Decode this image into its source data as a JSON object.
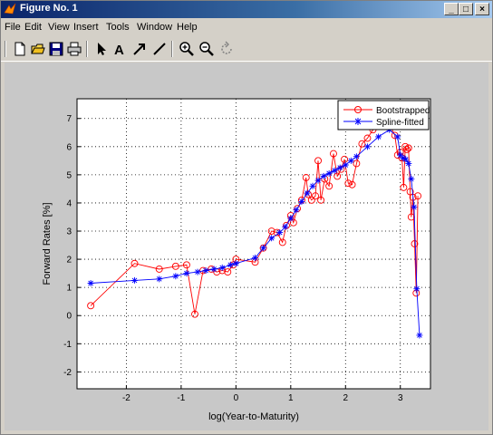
{
  "window": {
    "title": "Figure No. 1",
    "minimize": "_",
    "maximize": "□",
    "close": "×"
  },
  "menu": [
    {
      "label": "File"
    },
    {
      "label": "Edit"
    },
    {
      "label": "View"
    },
    {
      "label": "Insert"
    },
    {
      "label": "Tools"
    },
    {
      "label": "Window"
    },
    {
      "label": "Help"
    }
  ],
  "toolbar": [
    "new-file-icon",
    "open-folder-icon",
    "save-icon",
    "print-icon",
    "select-arrow-icon",
    "insert-text-icon",
    "insert-arrow-icon",
    "insert-line-icon",
    "zoom-in-icon",
    "zoom-out-icon",
    "rotate-icon"
  ],
  "chart_data": {
    "type": "line",
    "xlabel": "log(Year-to-Maturity)",
    "ylabel": "Forward Rates [%]",
    "xlim": [
      -2.9,
      3.55
    ],
    "ylim": [
      -2.6,
      7.7
    ],
    "xticks": [
      -2,
      -1,
      0,
      1,
      2,
      3
    ],
    "yticks": [
      -2,
      -1,
      0,
      1,
      2,
      3,
      4,
      5,
      6,
      7
    ],
    "grid": true,
    "legend_position": "top-right",
    "series": [
      {
        "name": "Bootstrapped",
        "color": "#ff0000",
        "marker": "circle",
        "x": [
          -2.65,
          -1.85,
          -1.4,
          -1.1,
          -0.9,
          -0.75,
          -0.6,
          -0.45,
          -0.35,
          -0.25,
          -0.15,
          -0.05,
          0.0,
          0.35,
          0.5,
          0.65,
          0.75,
          0.85,
          0.92,
          1.0,
          1.05,
          1.12,
          1.2,
          1.28,
          1.32,
          1.38,
          1.45,
          1.5,
          1.55,
          1.62,
          1.7,
          1.78,
          1.85,
          1.92,
          1.98,
          2.05,
          2.12,
          2.2,
          2.3,
          2.4,
          2.5,
          2.6,
          2.75,
          2.9,
          2.95,
          3.0,
          3.03,
          3.06,
          3.09,
          3.12,
          3.15,
          3.18,
          3.2,
          3.23,
          3.26,
          3.29,
          3.32
        ],
        "y": [
          0.35,
          1.85,
          1.65,
          1.75,
          1.8,
          0.05,
          1.6,
          1.65,
          1.55,
          1.6,
          1.55,
          1.8,
          2.0,
          1.9,
          2.4,
          3.0,
          2.95,
          2.6,
          3.2,
          3.55,
          3.3,
          3.8,
          4.1,
          4.9,
          4.3,
          4.1,
          4.25,
          5.5,
          4.1,
          4.85,
          4.6,
          5.75,
          4.95,
          5.2,
          5.55,
          4.7,
          4.65,
          5.4,
          6.1,
          6.3,
          6.6,
          6.8,
          7.0,
          6.4,
          5.7,
          5.8,
          5.6,
          4.55,
          6.0,
          5.9,
          5.95,
          4.4,
          3.5,
          4.2,
          2.55,
          0.8,
          4.25
        ]
      },
      {
        "name": "Spline-fitted",
        "color": "#0000ff",
        "marker": "star",
        "x": [
          -2.65,
          -1.85,
          -1.4,
          -1.1,
          -0.9,
          -0.7,
          -0.55,
          -0.4,
          -0.25,
          -0.1,
          0.0,
          0.35,
          0.5,
          0.65,
          0.8,
          0.9,
          1.0,
          1.1,
          1.2,
          1.3,
          1.4,
          1.5,
          1.6,
          1.7,
          1.8,
          1.9,
          2.0,
          2.1,
          2.2,
          2.4,
          2.6,
          2.8,
          2.95,
          3.0,
          3.05,
          3.1,
          3.15,
          3.2,
          3.25,
          3.3,
          3.35
        ],
        "y": [
          1.15,
          1.25,
          1.3,
          1.4,
          1.5,
          1.55,
          1.6,
          1.65,
          1.7,
          1.8,
          1.85,
          2.05,
          2.4,
          2.75,
          2.95,
          3.15,
          3.45,
          3.75,
          4.05,
          4.35,
          4.6,
          4.8,
          4.95,
          5.05,
          5.15,
          5.25,
          5.35,
          5.5,
          5.65,
          6.0,
          6.35,
          6.6,
          6.35,
          5.7,
          5.6,
          5.55,
          5.4,
          4.85,
          3.85,
          0.95,
          -0.7
        ]
      }
    ]
  }
}
